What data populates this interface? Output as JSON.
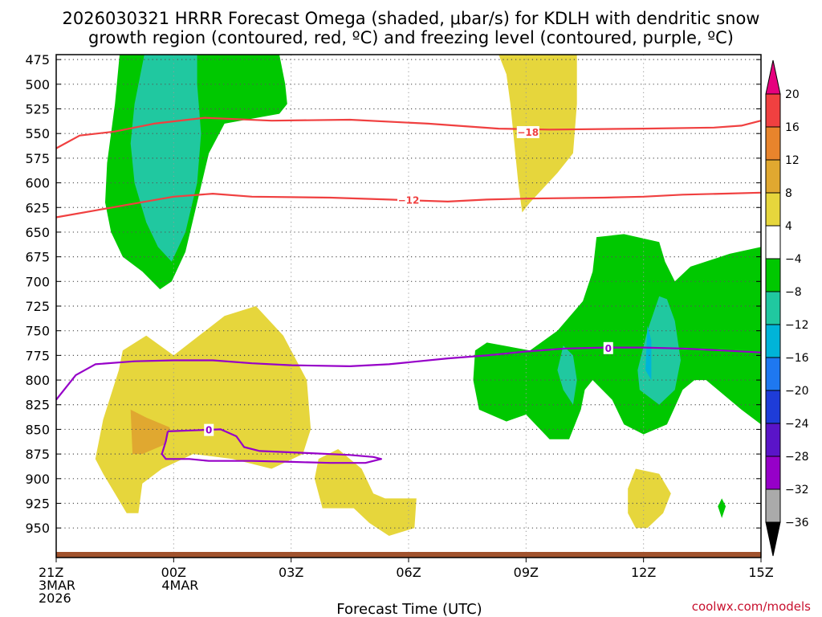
{
  "chart_data": {
    "type": "heatmap",
    "title_line1": "2026030321 HRRR Forecast Omega (shaded, μbar/s) for KDLH with dendritic snow",
    "title_line2": "growth region (contoured, red, ºC) and freezing level (contoured, purple, ºC)",
    "xlabel": "Forecast Time (UTC)",
    "credit": "coolwx.com/models",
    "x_range": [
      0,
      18
    ],
    "y_range": [
      470,
      980
    ],
    "y_ticks": [
      {
        "label": "475",
        "value": 475
      },
      {
        "label": "500",
        "value": 500
      },
      {
        "label": "525",
        "value": 525
      },
      {
        "label": "550",
        "value": 550
      },
      {
        "label": "575",
        "value": 575
      },
      {
        "label": "600",
        "value": 600
      },
      {
        "label": "625",
        "value": 625
      },
      {
        "label": "650",
        "value": 650
      },
      {
        "label": "675",
        "value": 675
      },
      {
        "label": "700",
        "value": 700
      },
      {
        "label": "725",
        "value": 725
      },
      {
        "label": "750",
        "value": 750
      },
      {
        "label": "775",
        "value": 775
      },
      {
        "label": "800",
        "value": 800
      },
      {
        "label": "825",
        "value": 825
      },
      {
        "label": "850",
        "value": 850
      },
      {
        "label": "875",
        "value": 875
      },
      {
        "label": "900",
        "value": 900
      },
      {
        "label": "925",
        "value": 925
      },
      {
        "label": "950",
        "value": 950
      }
    ],
    "x_ticks": [
      {
        "value": 0,
        "lines": [
          "21Z",
          "3MAR",
          "2026"
        ]
      },
      {
        "value": 3,
        "lines": [
          "00Z",
          "4MAR"
        ]
      },
      {
        "value": 6,
        "lines": [
          "03Z"
        ]
      },
      {
        "value": 9,
        "lines": [
          "06Z"
        ]
      },
      {
        "value": 12,
        "lines": [
          "09Z"
        ]
      },
      {
        "value": 15,
        "lines": [
          "12Z"
        ]
      },
      {
        "value": 18,
        "lines": [
          "15Z"
        ]
      }
    ],
    "colorbar": {
      "labels": [
        "20",
        "16",
        "12",
        "8",
        "4",
        "−4",
        "−8",
        "−12",
        "−16",
        "−20",
        "−24",
        "−28",
        "−32",
        "−36"
      ],
      "bins": [
        {
          "range": "16 to 20",
          "color": "#f04040"
        },
        {
          "range": "12 to 16",
          "color": "#e8842c"
        },
        {
          "range": "8 to 12",
          "color": "#e0a830"
        },
        {
          "range": "4 to 8",
          "color": "#e6d63c"
        },
        {
          "range": "-4 to 4",
          "color": "#ffffff"
        },
        {
          "range": "-8 to -4",
          "color": "#00c800"
        },
        {
          "range": "-12 to -8",
          "color": "#20c8a0"
        },
        {
          "range": "-16 to -12",
          "color": "#00b4d8"
        },
        {
          "range": "-20 to -16",
          "color": "#1e78f0"
        },
        {
          "range": "-24 to -20",
          "color": "#1e3cd8"
        },
        {
          "range": "-28 to -24",
          "color": "#5a14c8"
        },
        {
          "range": "-32 to -28",
          "color": "#9600c8"
        },
        {
          "range": "-36 to -32",
          "color": "#aaaaaa"
        }
      ],
      "top_arrow_color": "#e6007e",
      "bottom_arrow_color": "#000000"
    },
    "shaded_regions": [
      {
        "name": "green-upper-left",
        "color": "#00c800",
        "points": [
          [
            1.62,
            470
          ],
          [
            1.5,
            520
          ],
          [
            1.3,
            580
          ],
          [
            1.25,
            620
          ],
          [
            1.4,
            650
          ],
          [
            1.7,
            675
          ],
          [
            2.2,
            690
          ],
          [
            2.65,
            708
          ],
          [
            2.95,
            700
          ],
          [
            3.3,
            670
          ],
          [
            3.6,
            620
          ],
          [
            3.9,
            570
          ],
          [
            4.3,
            540
          ],
          [
            5.7,
            530
          ],
          [
            5.9,
            520
          ],
          [
            5.85,
            500
          ],
          [
            5.7,
            470
          ]
        ]
      },
      {
        "name": "teal-upper-left",
        "color": "#20c8a0",
        "points": [
          [
            2.25,
            470
          ],
          [
            2.0,
            520
          ],
          [
            1.9,
            560
          ],
          [
            2.0,
            600
          ],
          [
            2.3,
            640
          ],
          [
            2.6,
            665
          ],
          [
            2.95,
            680
          ],
          [
            3.3,
            650
          ],
          [
            3.6,
            600
          ],
          [
            3.7,
            550
          ],
          [
            3.6,
            500
          ],
          [
            3.6,
            470
          ]
        ]
      },
      {
        "name": "yellow-upper-right",
        "color": "#e6d63c",
        "points": [
          [
            11.3,
            470
          ],
          [
            11.5,
            490
          ],
          [
            11.6,
            520
          ],
          [
            11.7,
            560
          ],
          [
            11.8,
            600
          ],
          [
            11.9,
            630
          ],
          [
            12.1,
            620
          ],
          [
            12.8,
            590
          ],
          [
            13.2,
            570
          ],
          [
            13.3,
            520
          ],
          [
            13.3,
            470
          ]
        ]
      },
      {
        "name": "yellow-lower-left",
        "color": "#e6d63c",
        "points": [
          [
            1.0,
            880
          ],
          [
            1.2,
            840
          ],
          [
            1.6,
            790
          ],
          [
            1.7,
            770
          ],
          [
            2.3,
            755
          ],
          [
            3.0,
            775
          ],
          [
            4.3,
            735
          ],
          [
            5.1,
            725
          ],
          [
            5.8,
            755
          ],
          [
            6.4,
            800
          ],
          [
            6.5,
            850
          ],
          [
            6.3,
            875
          ],
          [
            5.5,
            890
          ],
          [
            4.5,
            880
          ],
          [
            3.5,
            875
          ],
          [
            2.7,
            890
          ],
          [
            2.2,
            905
          ],
          [
            2.1,
            935
          ],
          [
            1.8,
            935
          ],
          [
            1.5,
            915
          ],
          [
            1.2,
            895
          ]
        ]
      },
      {
        "name": "orange-lower-left",
        "color": "#e0a830",
        "points": [
          [
            1.9,
            830
          ],
          [
            2.3,
            838
          ],
          [
            2.9,
            848
          ],
          [
            2.8,
            865
          ],
          [
            2.2,
            875
          ],
          [
            1.95,
            875
          ]
        ]
      },
      {
        "name": "yellow-lower-mid",
        "color": "#e6d63c",
        "points": [
          [
            6.7,
            880
          ],
          [
            7.2,
            870
          ],
          [
            7.8,
            890
          ],
          [
            8.1,
            915
          ],
          [
            8.4,
            920
          ],
          [
            9.2,
            920
          ],
          [
            9.15,
            950
          ],
          [
            8.5,
            958
          ],
          [
            8.0,
            945
          ],
          [
            7.6,
            930
          ],
          [
            6.8,
            930
          ],
          [
            6.6,
            900
          ]
        ]
      },
      {
        "name": "green-lower-right",
        "color": "#00c800",
        "points": [
          [
            18.0,
            665
          ],
          [
            17.2,
            672
          ],
          [
            16.2,
            685
          ],
          [
            15.8,
            700
          ],
          [
            15.55,
            680
          ],
          [
            15.4,
            660
          ],
          [
            14.5,
            652
          ],
          [
            13.8,
            655
          ],
          [
            13.7,
            690
          ],
          [
            13.45,
            720
          ],
          [
            12.8,
            750
          ],
          [
            12.1,
            770
          ],
          [
            11.0,
            762
          ],
          [
            10.7,
            770
          ],
          [
            10.65,
            800
          ],
          [
            10.8,
            830
          ],
          [
            11.5,
            842
          ],
          [
            12.0,
            835
          ],
          [
            12.6,
            860
          ],
          [
            13.1,
            860
          ],
          [
            13.4,
            830
          ],
          [
            13.5,
            810
          ],
          [
            13.7,
            800
          ],
          [
            14.2,
            820
          ],
          [
            14.5,
            845
          ],
          [
            15.0,
            855
          ],
          [
            15.6,
            845
          ],
          [
            16.0,
            810
          ],
          [
            16.3,
            800
          ],
          [
            16.6,
            800
          ],
          [
            17.5,
            830
          ],
          [
            18.0,
            845
          ]
        ]
      },
      {
        "name": "teal-lower-right-a",
        "color": "#20c8a0",
        "points": [
          [
            15.4,
            715
          ],
          [
            15.1,
            750
          ],
          [
            14.85,
            790
          ],
          [
            14.9,
            810
          ],
          [
            15.4,
            825
          ],
          [
            15.8,
            810
          ],
          [
            15.95,
            780
          ],
          [
            15.8,
            740
          ],
          [
            15.6,
            718
          ]
        ]
      },
      {
        "name": "cyan-lower-right",
        "color": "#00b4d8",
        "points": [
          [
            15.1,
            745
          ],
          [
            15.05,
            790
          ],
          [
            15.2,
            800
          ],
          [
            15.2,
            760
          ]
        ]
      },
      {
        "name": "teal-lower-right-b",
        "color": "#20c8a0",
        "points": [
          [
            12.95,
            765
          ],
          [
            13.2,
            775
          ],
          [
            13.3,
            800
          ],
          [
            13.2,
            825
          ],
          [
            12.95,
            810
          ],
          [
            12.8,
            790
          ]
        ]
      },
      {
        "name": "yellow-lower-right",
        "color": "#e6d63c",
        "points": [
          [
            14.8,
            890
          ],
          [
            14.6,
            910
          ],
          [
            14.6,
            935
          ],
          [
            14.8,
            950
          ],
          [
            15.1,
            950
          ],
          [
            15.5,
            935
          ],
          [
            15.7,
            915
          ],
          [
            15.4,
            895
          ]
        ]
      },
      {
        "name": "green-speck-right",
        "color": "#00c800",
        "points": [
          [
            17.0,
            920
          ],
          [
            17.1,
            928
          ],
          [
            17.0,
            940
          ],
          [
            16.9,
            928
          ]
        ]
      }
    ],
    "contours": [
      {
        "label": "−18",
        "color": "#f04040",
        "label_at": [
          12.05,
          549
        ],
        "points": [
          [
            0,
            565
          ],
          [
            0.6,
            552
          ],
          [
            1.5,
            548
          ],
          [
            2.5,
            540
          ],
          [
            3.8,
            534
          ],
          [
            5.5,
            537
          ],
          [
            7.5,
            536
          ],
          [
            9.5,
            540
          ],
          [
            11.3,
            545
          ],
          [
            12.6,
            546
          ],
          [
            15.0,
            545
          ],
          [
            16.8,
            544
          ],
          [
            17.5,
            542
          ],
          [
            18.0,
            537
          ]
        ]
      },
      {
        "label": "−12",
        "color": "#f04040",
        "label_at": [
          9.0,
          618
        ],
        "points": [
          [
            0,
            635
          ],
          [
            1.0,
            628
          ],
          [
            2.0,
            621
          ],
          [
            3.0,
            614
          ],
          [
            4.0,
            611
          ],
          [
            5.0,
            614
          ],
          [
            7.0,
            615
          ],
          [
            8.5,
            617
          ],
          [
            10.0,
            619
          ],
          [
            11.0,
            617
          ],
          [
            12.0,
            616
          ],
          [
            14.0,
            615
          ],
          [
            15.0,
            614
          ],
          [
            16.0,
            612
          ],
          [
            17.0,
            611
          ],
          [
            18.0,
            610
          ]
        ]
      },
      {
        "label": "0",
        "color": "#9600c8",
        "label_at": [
          14.1,
          768
        ],
        "points": [
          [
            0,
            820
          ],
          [
            0.5,
            795
          ],
          [
            1.0,
            784
          ],
          [
            2.0,
            781
          ],
          [
            3.0,
            780
          ],
          [
            4.0,
            780
          ],
          [
            5.0,
            783
          ],
          [
            6.0,
            785
          ],
          [
            7.5,
            786
          ],
          [
            8.5,
            784
          ],
          [
            10.0,
            778
          ],
          [
            11.0,
            775
          ],
          [
            12.0,
            771
          ],
          [
            13.0,
            768
          ],
          [
            14.0,
            767
          ],
          [
            15.0,
            767
          ],
          [
            16.0,
            768
          ],
          [
            17.0,
            770
          ],
          [
            18.0,
            772
          ]
        ]
      },
      {
        "label": "0",
        "color": "#9600c8",
        "label_at": [
          3.9,
          851
        ],
        "points": [
          [
            2.85,
            852
          ],
          [
            3.5,
            851
          ],
          [
            4.2,
            850
          ],
          [
            4.6,
            857
          ],
          [
            4.8,
            868
          ],
          [
            5.2,
            872
          ],
          [
            6.4,
            874
          ],
          [
            7.5,
            876
          ],
          [
            8.1,
            878
          ],
          [
            8.3,
            880
          ],
          [
            7.9,
            884
          ],
          [
            7.0,
            884
          ],
          [
            6.0,
            883
          ],
          [
            5.0,
            882
          ],
          [
            3.9,
            882
          ],
          [
            3.4,
            880
          ],
          [
            2.8,
            880
          ],
          [
            2.7,
            875
          ],
          [
            2.8,
            862
          ],
          [
            2.85,
            852
          ]
        ]
      }
    ],
    "surface": {
      "color": "#a0522d",
      "pressure_bottom": 980
    }
  }
}
